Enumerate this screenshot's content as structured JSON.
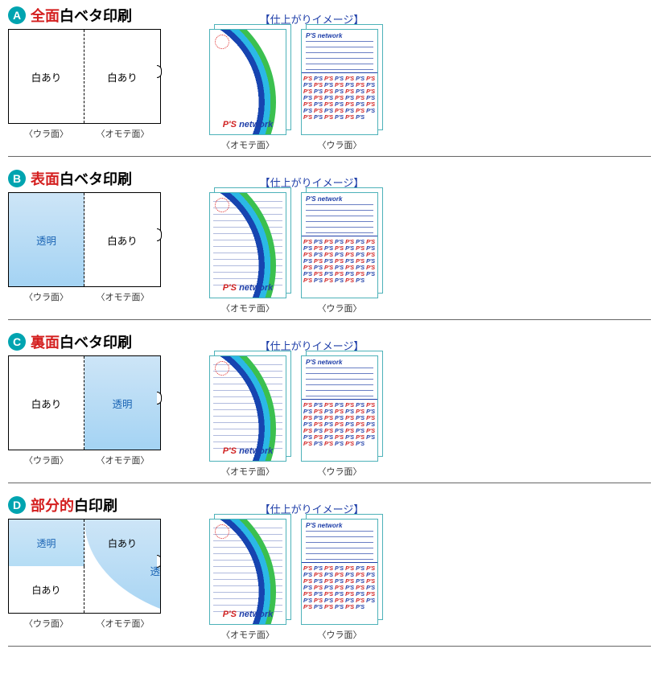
{
  "colors": {
    "badge_bg": "#00a4b0",
    "badge_fg": "#ffffff",
    "title_accent": "#d41f1f",
    "title_black": "#000000",
    "finish_label": "#1f3fa9",
    "blue_fill_top": "#cde5f7",
    "blue_fill_bottom": "#a4d3f3",
    "blue_text": "#1a64b4",
    "border": "#000000",
    "preview_border": "#4db2b9",
    "hr": "#666666",
    "logo_red": "#d02020",
    "logo_blue": "#1f3fa9",
    "line_blue": "#6a7fc4"
  },
  "common": {
    "finish_label": "【仕上がりイメージ】",
    "ura_label": "〈ウラ面〉",
    "omote_label": "〈オモテ面〉",
    "white_text": "白あり",
    "transparent_text": "透明",
    "ps_text": "P'S",
    "network_text": "network"
  },
  "sections": [
    {
      "id": "A",
      "title_accent": "全面",
      "title_rest": "白ベタ印刷",
      "diagram": {
        "left": "white",
        "right": "white"
      },
      "front_overlay": false
    },
    {
      "id": "B",
      "title_accent": "表面",
      "title_rest": "白ベタ印刷",
      "diagram": {
        "left": "transparent",
        "right": "white"
      },
      "front_overlay": true
    },
    {
      "id": "C",
      "title_accent": "裏面",
      "title_rest": "白ベタ印刷",
      "diagram": {
        "left": "white",
        "right": "transparent"
      },
      "front_overlay": true
    },
    {
      "id": "D",
      "title_accent": "部分的",
      "title_rest": "白印刷",
      "diagram": {
        "type": "partial"
      },
      "front_overlay": true
    }
  ]
}
